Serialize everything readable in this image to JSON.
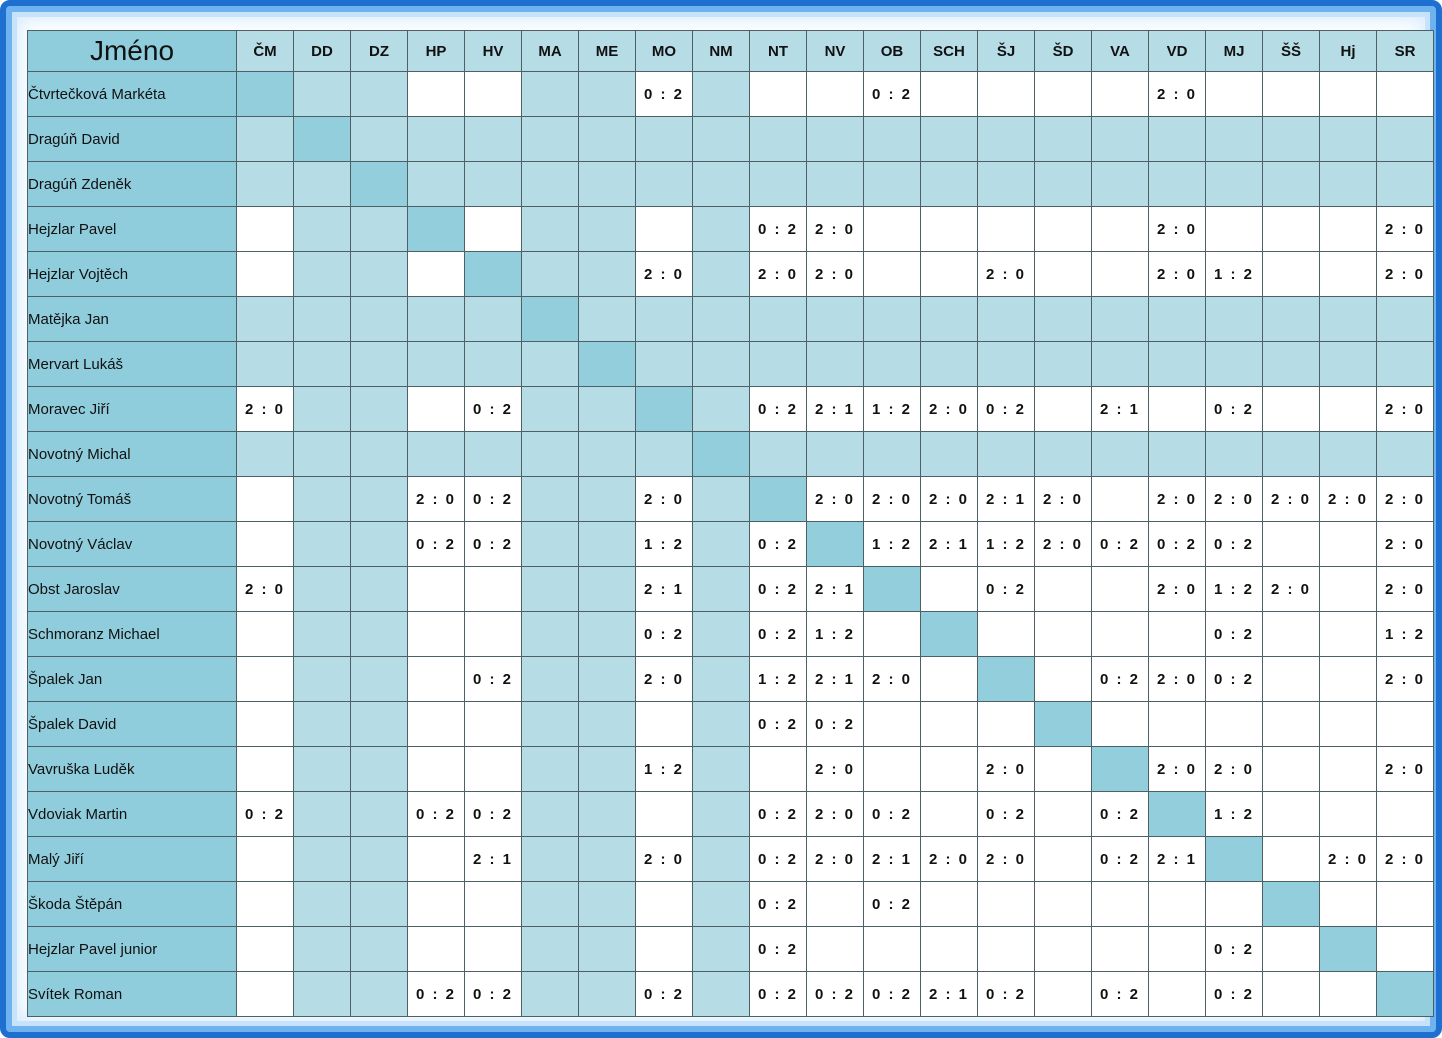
{
  "header": {
    "name_label": "Jméno",
    "columns": [
      "ČM",
      "DD",
      "DZ",
      "HP",
      "HV",
      "MA",
      "ME",
      "MO",
      "NM",
      "NT",
      "NV",
      "OB",
      "SCH",
      "ŠJ",
      "ŠD",
      "VA",
      "VD",
      "MJ",
      "ŠŠ",
      "Hj",
      "SR"
    ]
  },
  "shaded_columns": [
    1,
    2,
    5,
    6,
    8
  ],
  "shaded_rows": [
    1,
    2,
    5,
    6,
    8
  ],
  "rows": [
    {
      "name": "Čtvrtečková Markéta",
      "scores": [
        "",
        "",
        "",
        "",
        "",
        "",
        "",
        "0 : 2",
        "",
        "",
        "",
        "0 : 2",
        "",
        "",
        "",
        "",
        "2 : 0",
        "",
        "",
        "",
        ""
      ]
    },
    {
      "name": "Dragúň David",
      "scores": [
        "",
        "",
        "",
        "",
        "",
        "",
        "",
        "",
        "",
        "",
        "",
        "",
        "",
        "",
        "",
        "",
        "",
        "",
        "",
        "",
        ""
      ]
    },
    {
      "name": "Dragúň Zdeněk",
      "scores": [
        "",
        "",
        "",
        "",
        "",
        "",
        "",
        "",
        "",
        "",
        "",
        "",
        "",
        "",
        "",
        "",
        "",
        "",
        "",
        "",
        ""
      ]
    },
    {
      "name": "Hejzlar Pavel",
      "scores": [
        "",
        "",
        "",
        "",
        "",
        "",
        "",
        "",
        "",
        "0 : 2",
        "2 : 0",
        "",
        "",
        "",
        "",
        "",
        "2 : 0",
        "",
        "",
        "",
        "2 : 0"
      ]
    },
    {
      "name": "Hejzlar Vojtěch",
      "scores": [
        "",
        "",
        "",
        "",
        "",
        "",
        "",
        "2 : 0",
        "",
        "2 : 0",
        "2 : 0",
        "",
        "",
        "2 : 0",
        "",
        "",
        "2 : 0",
        "1 : 2",
        "",
        "",
        "2 : 0"
      ]
    },
    {
      "name": "Matějka Jan",
      "scores": [
        "",
        "",
        "",
        "",
        "",
        "",
        "",
        "",
        "",
        "",
        "",
        "",
        "",
        "",
        "",
        "",
        "",
        "",
        "",
        "",
        ""
      ]
    },
    {
      "name": "Mervart Lukáš",
      "scores": [
        "",
        "",
        "",
        "",
        "",
        "",
        "",
        "",
        "",
        "",
        "",
        "",
        "",
        "",
        "",
        "",
        "",
        "",
        "",
        "",
        ""
      ]
    },
    {
      "name": "Moravec Jiří",
      "scores": [
        "2 : 0",
        "",
        "",
        "",
        "0 : 2",
        "",
        "",
        "",
        "",
        "0 : 2",
        "2 : 1",
        "1 : 2",
        "2 : 0",
        "0 : 2",
        "",
        "2 : 1",
        "",
        "0 : 2",
        "",
        "",
        "2 : 0"
      ]
    },
    {
      "name": "Novotný Michal",
      "scores": [
        "",
        "",
        "",
        "",
        "",
        "",
        "",
        "",
        "",
        "",
        "",
        "",
        "",
        "",
        "",
        "",
        "",
        "",
        "",
        "",
        ""
      ]
    },
    {
      "name": "Novotný Tomáš",
      "scores": [
        "",
        "",
        "",
        "2 : 0",
        "0 : 2",
        "",
        "",
        "2 : 0",
        "",
        "",
        "2 : 0",
        "2 : 0",
        "2 : 0",
        "2 : 1",
        "2 : 0",
        "",
        "2 : 0",
        "2 : 0",
        "2 : 0",
        "2 : 0",
        "2 : 0"
      ]
    },
    {
      "name": "Novotný Václav",
      "scores": [
        "",
        "",
        "",
        "0 : 2",
        "0 : 2",
        "",
        "",
        "1 : 2",
        "",
        "0 : 2",
        "",
        "1 : 2",
        "2 : 1",
        "1 : 2",
        "2 : 0",
        "0 : 2",
        "0 : 2",
        "0 : 2",
        "",
        "",
        "2 : 0"
      ]
    },
    {
      "name": "Obst Jaroslav",
      "scores": [
        "2 : 0",
        "",
        "",
        "",
        "",
        "",
        "",
        "2 : 1",
        "",
        "0 : 2",
        "2 : 1",
        "",
        "",
        "0 : 2",
        "",
        "",
        "2 : 0",
        "1 : 2",
        "2 : 0",
        "",
        "2 : 0"
      ]
    },
    {
      "name": "Schmoranz Michael",
      "scores": [
        "",
        "",
        "",
        "",
        "",
        "",
        "",
        "0 : 2",
        "",
        "0 : 2",
        "1 : 2",
        "",
        "",
        "",
        "",
        "",
        "",
        "0 : 2",
        "",
        "",
        "1 : 2"
      ]
    },
    {
      "name": "Špalek Jan",
      "scores": [
        "",
        "",
        "",
        "",
        "0 : 2",
        "",
        "",
        "2 : 0",
        "",
        "1 : 2",
        "2 : 1",
        "2 : 0",
        "",
        "",
        "",
        "0 : 2",
        "2 : 0",
        "0 : 2",
        "",
        "",
        "2 : 0"
      ]
    },
    {
      "name": "Špalek David",
      "scores": [
        "",
        "",
        "",
        "",
        "",
        "",
        "",
        "",
        "",
        "0 : 2",
        "0 : 2",
        "",
        "",
        "",
        "",
        "",
        "",
        "",
        "",
        "",
        ""
      ]
    },
    {
      "name": "Vavruška Luděk",
      "scores": [
        "",
        "",
        "",
        "",
        "",
        "",
        "",
        "1 : 2",
        "",
        "",
        "2 : 0",
        "",
        "",
        "2 : 0",
        "",
        "",
        "2 : 0",
        "2 : 0",
        "",
        "",
        "2 : 0"
      ]
    },
    {
      "name": "Vdoviak Martin",
      "scores": [
        "0 : 2",
        "",
        "",
        "0 : 2",
        "0 : 2",
        "",
        "",
        "",
        "",
        "0 : 2",
        "2 : 0",
        "0 : 2",
        "",
        "0 : 2",
        "",
        "0 : 2",
        "",
        "1 : 2",
        "",
        "",
        ""
      ]
    },
    {
      "name": "Malý Jiří",
      "scores": [
        "",
        "",
        "",
        "",
        "2 : 1",
        "",
        "",
        "2 : 0",
        "",
        "0 : 2",
        "2 : 0",
        "2 : 1",
        "2 : 0",
        "2 : 0",
        "",
        "0 : 2",
        "2 : 1",
        "",
        "",
        "2 : 0",
        "2 : 0"
      ]
    },
    {
      "name": "Škoda Štěpán",
      "scores": [
        "",
        "",
        "",
        "",
        "",
        "",
        "",
        "",
        "",
        "0 : 2",
        "",
        "0 : 2",
        "",
        "",
        "",
        "",
        "",
        "",
        "",
        "",
        ""
      ]
    },
    {
      "name": "Hejzlar Pavel junior",
      "scores": [
        "",
        "",
        "",
        "",
        "",
        "",
        "",
        "",
        "",
        "0 : 2",
        "",
        "",
        "",
        "",
        "",
        "",
        "",
        "0 : 2",
        "",
        "",
        ""
      ]
    },
    {
      "name": "Svítek Roman",
      "scores": [
        "",
        "",
        "",
        "0 : 2",
        "0 : 2",
        "",
        "",
        "0 : 2",
        "",
        "0 : 2",
        "0 : 2",
        "0 : 2",
        "2 : 1",
        "0 : 2",
        "",
        "0 : 2",
        "",
        "0 : 2",
        "",
        "",
        ""
      ]
    }
  ],
  "colors": {
    "name_cells": "#8fcddd",
    "light_cells": "#b6dce6",
    "diagonal_cells": "#92cedc",
    "border": "#1f6fd0"
  }
}
